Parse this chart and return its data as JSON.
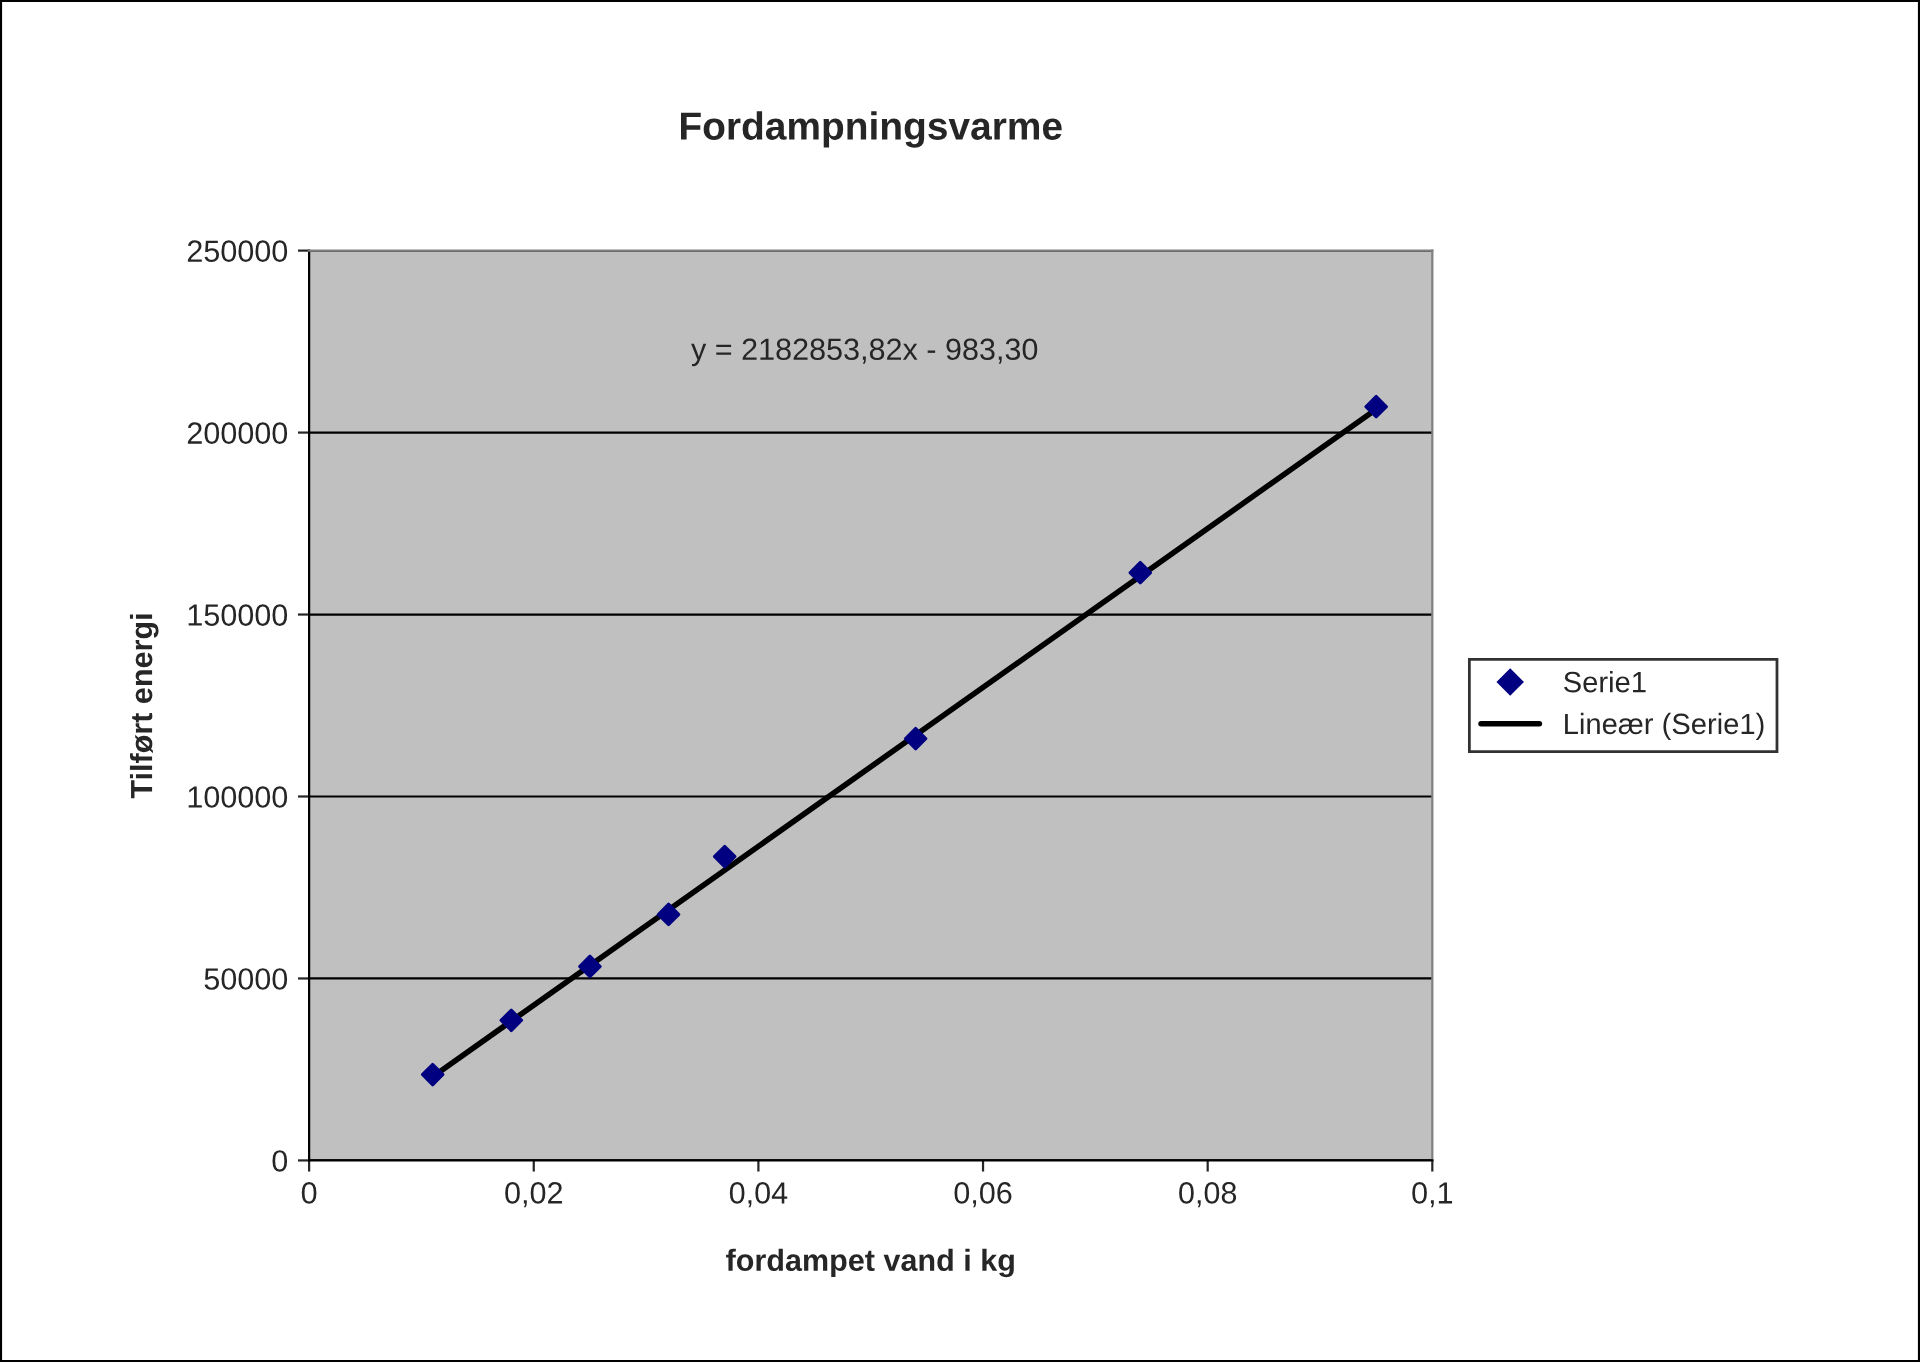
{
  "chart_data": {
    "type": "scatter",
    "title": "Fordampningsvarme",
    "xlabel": "fordampet vand i kg",
    "ylabel": "Tilført energi",
    "annotations": [
      "y = 2182853,82x - 983,30"
    ],
    "series": [
      {
        "name": "Serie1",
        "type": "scatter",
        "color": "#000080",
        "marker": "diamond",
        "x": [
          0.011,
          0.018,
          0.025,
          0.032,
          0.037,
          0.054,
          0.074,
          0.095
        ],
        "values": [
          23600,
          38500,
          53300,
          67600,
          83500,
          115900,
          161500,
          207100
        ]
      },
      {
        "name": "Lineær (Serie1)",
        "type": "line",
        "color": "#000000",
        "line_style": "solid",
        "x": [
          0.011,
          0.095
        ],
        "values": [
          23000,
          206400
        ]
      }
    ],
    "xlim": [
      0,
      0.1
    ],
    "xticks": [
      {
        "value": 0,
        "label": "0"
      },
      {
        "value": 0.02,
        "label": "0,02"
      },
      {
        "value": 0.04,
        "label": "0,04"
      },
      {
        "value": 0.06,
        "label": "0,06"
      },
      {
        "value": 0.08,
        "label": "0,08"
      },
      {
        "value": 0.1,
        "label": "0,1"
      }
    ],
    "ylim": [
      0,
      250000
    ],
    "yticks": [
      0,
      50000,
      100000,
      150000,
      200000,
      250000
    ],
    "grid": "y",
    "legend": "right"
  }
}
